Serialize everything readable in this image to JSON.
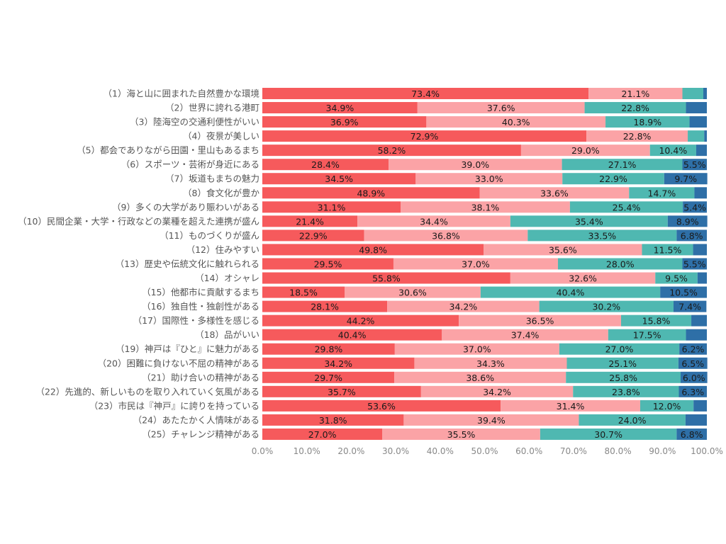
{
  "chart_data": {
    "type": "bar",
    "orientation": "horizontal",
    "stacked": true,
    "title": "",
    "xlabel": "",
    "ylabel": "",
    "xlim": [
      0,
      100
    ],
    "x_ticks": [
      "0.0%",
      "10.0%",
      "20.0%",
      "30.0%",
      "40.0%",
      "50.0%",
      "60.0%",
      "70.0%",
      "80.0%",
      "90.0%",
      "100.0%"
    ],
    "grid": false,
    "legend": "none",
    "series_colors": [
      "#f65a5c",
      "#fba3a6",
      "#4fb8b1",
      "#2e6fa7"
    ],
    "categories": [
      "（1）海と山に囲まれた自然豊かな環境",
      "（2）世界に誇れる港町",
      "（3）陸海空の交通利便性がいい",
      "（4）夜景が美しい",
      "（5）都会でありながら田園・里山もあるまち",
      "（6）スポーツ・芸術が身近にある",
      "（7）坂道もまちの魅力",
      "（8）食文化が豊か",
      "（9）多くの大学があり賑わいがある",
      "（10）民間企業・大学・行政などの業種を超えた連携が盛ん",
      "（11）ものづくりが盛ん",
      "（12）住みやすい",
      "（13）歴史や伝統文化に触れられる",
      "（14）オシャレ",
      "（15）他都市に貢献するまち",
      "（16）独自性・独創性がある",
      "（17）国際性・多様性を感じる",
      "（18）品がいい",
      "（19）神戸は『ひと』に魅力がある",
      "（20）困難に負けない不屈の精神がある",
      "（21）助け合いの精神がある",
      "（22）先進的、新しいものを取り入れていく気風がある",
      "（23）市民は『神戸』に誇りを持っている",
      "（24）あたたかく人情味がある",
      "（25）チャレンジ精神がある"
    ],
    "values": [
      [
        73.4,
        21.1,
        4.7,
        0.8
      ],
      [
        34.9,
        37.6,
        22.8,
        4.7
      ],
      [
        36.9,
        40.3,
        18.9,
        3.9
      ],
      [
        72.9,
        22.8,
        3.7,
        0.6
      ],
      [
        58.2,
        29.0,
        10.4,
        2.4
      ],
      [
        28.4,
        39.0,
        27.1,
        5.5
      ],
      [
        34.5,
        33.0,
        22.9,
        9.7
      ],
      [
        48.9,
        33.6,
        14.7,
        2.8
      ],
      [
        31.1,
        38.1,
        25.4,
        5.4
      ],
      [
        21.4,
        34.4,
        35.4,
        8.9
      ],
      [
        22.9,
        36.8,
        33.5,
        6.8
      ],
      [
        49.8,
        35.6,
        11.5,
        3.1
      ],
      [
        29.5,
        37.0,
        28.0,
        5.5
      ],
      [
        55.8,
        32.6,
        9.5,
        2.1
      ],
      [
        18.5,
        30.6,
        40.4,
        10.5
      ],
      [
        28.1,
        34.2,
        30.2,
        7.4
      ],
      [
        44.2,
        36.5,
        15.8,
        3.5
      ],
      [
        40.4,
        37.4,
        17.5,
        4.7
      ],
      [
        29.8,
        37.0,
        27.0,
        6.2
      ],
      [
        34.2,
        34.3,
        25.1,
        6.5
      ],
      [
        29.7,
        38.6,
        25.8,
        6.0
      ],
      [
        35.7,
        34.2,
        23.8,
        6.3
      ],
      [
        53.6,
        31.4,
        12.0,
        3.0
      ],
      [
        31.8,
        39.4,
        24.0,
        4.8
      ],
      [
        27.0,
        35.5,
        30.7,
        6.8
      ]
    ],
    "labels": [
      [
        "73.4%",
        "21.1%",
        "",
        ""
      ],
      [
        "34.9%",
        "37.6%",
        "22.8%",
        ""
      ],
      [
        "36.9%",
        "40.3%",
        "18.9%",
        ""
      ],
      [
        "72.9%",
        "22.8%",
        "",
        ""
      ],
      [
        "58.2%",
        "29.0%",
        "10.4%",
        ""
      ],
      [
        "28.4%",
        "39.0%",
        "27.1%",
        "5.5%"
      ],
      [
        "34.5%",
        "33.0%",
        "22.9%",
        "9.7%"
      ],
      [
        "48.9%",
        "33.6%",
        "14.7%",
        ""
      ],
      [
        "31.1%",
        "38.1%",
        "25.4%",
        "5.4%"
      ],
      [
        "21.4%",
        "34.4%",
        "35.4%",
        "8.9%"
      ],
      [
        "22.9%",
        "36.8%",
        "33.5%",
        "6.8%"
      ],
      [
        "49.8%",
        "35.6%",
        "11.5%",
        ""
      ],
      [
        "29.5%",
        "37.0%",
        "28.0%",
        "5.5%"
      ],
      [
        "55.8%",
        "32.6%",
        "9.5%",
        ""
      ],
      [
        "18.5%",
        "30.6%",
        "40.4%",
        "10.5%"
      ],
      [
        "28.1%",
        "34.2%",
        "30.2%",
        "7.4%"
      ],
      [
        "44.2%",
        "36.5%",
        "15.8%",
        ""
      ],
      [
        "40.4%",
        "37.4%",
        "17.5%",
        ""
      ],
      [
        "29.8%",
        "37.0%",
        "27.0%",
        "6.2%"
      ],
      [
        "34.2%",
        "34.3%",
        "25.1%",
        "6.5%"
      ],
      [
        "29.7%",
        "38.6%",
        "25.8%",
        "6.0%"
      ],
      [
        "35.7%",
        "34.2%",
        "23.8%",
        "6.3%"
      ],
      [
        "53.6%",
        "31.4%",
        "12.0%",
        ""
      ],
      [
        "31.8%",
        "39.4%",
        "24.0%",
        ""
      ],
      [
        "27.0%",
        "35.5%",
        "30.7%",
        "6.8%"
      ]
    ]
  }
}
